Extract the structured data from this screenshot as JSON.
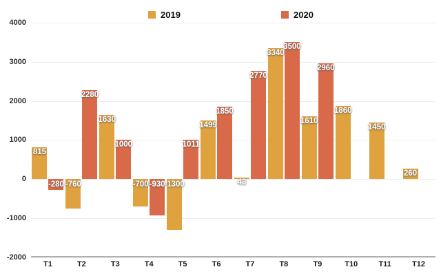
{
  "chart_data": {
    "type": "bar",
    "title": "",
    "xlabel": "",
    "ylabel": "",
    "categories": [
      "T1",
      "T2",
      "T3",
      "T4",
      "T5",
      "T6",
      "T7",
      "T8",
      "T9",
      "T10",
      "T11",
      "T12"
    ],
    "series": [
      {
        "name": "2019",
        "color": "#dfa23f",
        "values": [
          815,
          -760,
          1630,
          -700,
          -1300,
          1499,
          43,
          3340,
          1610,
          1860,
          1450,
          260
        ]
      },
      {
        "name": "2020",
        "color": "#d96a49",
        "values": [
          -280,
          2280,
          1000,
          -930,
          1011,
          1850,
          2770,
          3500,
          2960,
          null,
          null,
          null
        ]
      }
    ],
    "y_ticks": [
      4000,
      3000,
      2000,
      1000,
      0,
      -1000,
      -2000
    ],
    "ylim": [
      -2000,
      4000
    ],
    "grid": true,
    "legend_position": "top-center",
    "value_labels": true,
    "background_color": "#ffffff",
    "gridline_color": "#ededed",
    "axis_line_color": "#b0b0b0"
  }
}
